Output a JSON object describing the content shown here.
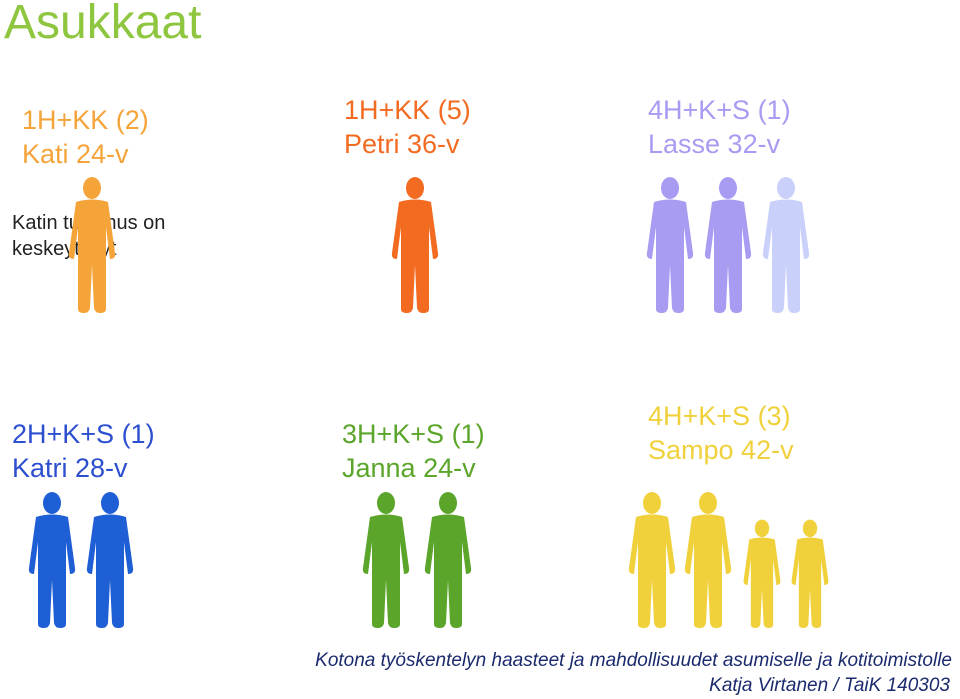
{
  "title": "Asukkaat",
  "note": [
    "Katin tutkimus on",
    "keskeytynyt"
  ],
  "households": [
    {
      "type": "1H+KK (2)",
      "name": "Kati 24-v",
      "color": "#f5a43a",
      "persons": 1
    },
    {
      "type": "1H+KK (5)",
      "name": "Petri 36-v",
      "color": "#f26b21",
      "persons": 1
    },
    {
      "type": "4H+K+S (1)",
      "name": "Lasse 32-v",
      "color": "#a79cf2",
      "persons": 3
    },
    {
      "type": "2H+K+S (1)",
      "name": "Katri 28-v",
      "color": "#2c4fcf",
      "persons": 2
    },
    {
      "type": "3H+K+S (1)",
      "name": "Janna 24-v",
      "color": "#5aa52a",
      "persons": 2
    },
    {
      "type": "4H+K+S (3)",
      "name": "Sampo 42-v",
      "color": "#f0d13c",
      "persons": 4
    }
  ],
  "footer": {
    "line1": "Kotona työskentelyn haasteet ja mahdollisuudet asumiselle ja kotitoimistolle",
    "line2": "Katja Virtanen / TaiK 140303"
  }
}
